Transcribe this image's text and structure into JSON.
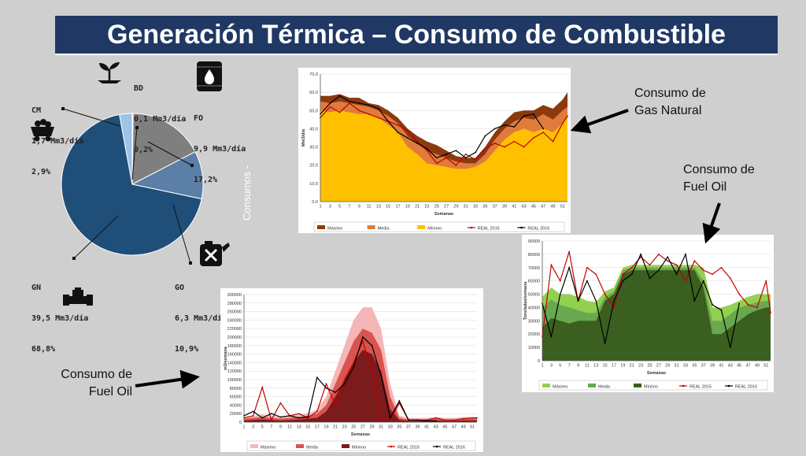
{
  "title": "Generación Térmica – Consumo de Combustible",
  "side_watermark": "Consumos -",
  "annotations": {
    "gas_natural": [
      "Consumo de",
      "Gas Natural"
    ],
    "fuel_oil_right": [
      "Consumo de",
      "Fuel Oil"
    ],
    "fuel_oil_left": [
      "Consumo de",
      "Fuel Oil"
    ]
  },
  "colors": {
    "title_bg": "#1f3864",
    "gn": "#1f4e79",
    "fo": "#7f7f7f",
    "go": "#5b7fa6",
    "cm": "#9dc3e6",
    "bd": "#dfe8f2",
    "gas_max": "#8b3a0e",
    "gas_media": "#e07b3c",
    "gas_min": "#ffc000",
    "fo_max": "#f4b6b6",
    "fo_media": "#d9534f",
    "fo_min": "#7b1b1b",
    "go_max": "#92d050",
    "go_media": "#6aa84f",
    "go_min": "#3a5f1f",
    "real2015": "#c00000",
    "real2016": "#000000"
  },
  "pie_labels": {
    "bd": [
      "BD",
      "0,1 Mm3/día",
      "0,2%"
    ],
    "fo": [
      "FO",
      "9,9 Mm3/día",
      "17,2%"
    ],
    "cm": [
      "CM",
      "1,7 Mm3/día",
      "2,9%"
    ],
    "go": [
      "GO",
      "6,3 Mm3/día",
      "10,9%"
    ],
    "gn": [
      "GN",
      "39,5 Mm3/día",
      "68,8%"
    ]
  },
  "icons": {
    "bd": "plant-icon",
    "fo": "oil-drop-icon",
    "cm": "coal-cart-icon",
    "go": "fuel-can-icon",
    "gn": "gas-pipe-icon"
  },
  "chart_data": [
    {
      "type": "pie",
      "labels": [
        "BD",
        "FO",
        "GO",
        "GN",
        "CM"
      ],
      "values": [
        0.2,
        17.2,
        10.9,
        68.8,
        2.9
      ]
    },
    {
      "type": "area",
      "xlabel": "Semanas",
      "ylabel": "Mm3/día",
      "ylim": [
        0,
        70
      ],
      "yticks": [
        "0.0",
        "10.0",
        "20.0",
        "30.0",
        "40.0",
        "50.0",
        "60.0",
        "70.0"
      ],
      "xticks": [
        "1",
        "3",
        "5",
        "7",
        "9",
        "11",
        "13",
        "15",
        "17",
        "19",
        "21",
        "23",
        "25",
        "27",
        "29",
        "31",
        "33",
        "35",
        "37",
        "39",
        "41",
        "43",
        "45",
        "47",
        "49",
        "51"
      ],
      "x": [
        1,
        3,
        5,
        7,
        9,
        11,
        13,
        15,
        17,
        19,
        21,
        23,
        25,
        27,
        29,
        31,
        33,
        35,
        37,
        39,
        41,
        43,
        45,
        47,
        49,
        51,
        52
      ],
      "series": [
        {
          "name": "Máximo",
          "values": [
            58,
            58,
            59,
            57,
            57,
            54,
            53,
            50,
            46,
            40,
            36,
            33,
            31,
            28,
            25,
            24,
            24,
            30,
            38,
            44,
            49,
            50,
            50,
            53,
            51,
            56,
            60
          ]
        },
        {
          "name": "Media",
          "values": [
            55,
            54,
            55,
            54,
            53,
            52,
            50,
            47,
            43,
            36,
            32,
            28,
            26,
            24,
            22,
            21,
            21,
            26,
            34,
            40,
            44,
            46,
            45,
            48,
            45,
            50,
            52
          ]
        },
        {
          "name": "Mínimo",
          "values": [
            50,
            49,
            50,
            49,
            48,
            48,
            46,
            42,
            38,
            30,
            26,
            21,
            20,
            19,
            18,
            18,
            19,
            22,
            28,
            34,
            38,
            40,
            38,
            40,
            38,
            43,
            46
          ]
        },
        {
          "name": "REAL 2015",
          "values": [
            46,
            52,
            49,
            54,
            50,
            48,
            46,
            44,
            42,
            39,
            33,
            28,
            21,
            24,
            20,
            26,
            23,
            29,
            32,
            30,
            33,
            30,
            35,
            38,
            33,
            43,
            47
          ]
        },
        {
          "name": "REAL 2016",
          "values": [
            48,
            54,
            58,
            55,
            54,
            53,
            51,
            44,
            38,
            35,
            32,
            29,
            24,
            26,
            28,
            24,
            27,
            36,
            40,
            42,
            41,
            47,
            48,
            40,
            null,
            null,
            null
          ]
        }
      ]
    },
    {
      "type": "area",
      "xlabel": "Semanas",
      "ylabel": "Toneladas/semana",
      "ylim": [
        0,
        90000
      ],
      "yticks": [
        "0",
        "10000",
        "20000",
        "30000",
        "40000",
        "50000",
        "60000",
        "70000",
        "80000",
        "90000"
      ],
      "xticks": [
        "1",
        "3",
        "5",
        "7",
        "9",
        "11",
        "13",
        "15",
        "17",
        "19",
        "21",
        "23",
        "25",
        "27",
        "29",
        "31",
        "33",
        "35",
        "37",
        "39",
        "41",
        "43",
        "45",
        "47",
        "49",
        "51"
      ],
      "x": [
        1,
        3,
        5,
        7,
        9,
        11,
        13,
        15,
        17,
        19,
        21,
        23,
        25,
        27,
        29,
        31,
        33,
        35,
        37,
        39,
        41,
        43,
        45,
        47,
        49,
        51,
        52
      ],
      "series": [
        {
          "name": "Máximo",
          "values": [
            48000,
            55000,
            50000,
            50000,
            48000,
            45000,
            44000,
            52000,
            55000,
            70000,
            72000,
            72000,
            72000,
            72000,
            72000,
            72000,
            72000,
            72000,
            70000,
            40000,
            40000,
            42000,
            45000,
            48000,
            50000,
            50000,
            50000
          ]
        },
        {
          "name": "Media",
          "values": [
            40000,
            46000,
            42000,
            40000,
            38000,
            36000,
            36000,
            48000,
            52000,
            68000,
            70000,
            70000,
            70000,
            70000,
            70000,
            70000,
            70000,
            70000,
            60000,
            30000,
            30000,
            35000,
            40000,
            42000,
            44000,
            45000,
            45000
          ]
        },
        {
          "name": "Mínimo",
          "values": [
            25000,
            32000,
            30000,
            28000,
            30000,
            30000,
            30000,
            45000,
            50000,
            65000,
            68000,
            68000,
            68000,
            68000,
            68000,
            68000,
            68000,
            68000,
            55000,
            20000,
            20000,
            25000,
            30000,
            35000,
            38000,
            40000,
            40000
          ]
        },
        {
          "name": "REAL 2015",
          "values": [
            18000,
            72000,
            60000,
            82000,
            45000,
            70000,
            65000,
            50000,
            40000,
            65000,
            70000,
            78000,
            72000,
            80000,
            75000,
            72000,
            60000,
            75000,
            68000,
            65000,
            70000,
            62000,
            50000,
            42000,
            40000,
            60000,
            36000
          ]
        },
        {
          "name": "REAL 2016",
          "values": [
            43000,
            18000,
            50000,
            70000,
            45000,
            60000,
            45000,
            13000,
            45000,
            60000,
            65000,
            80000,
            62000,
            68000,
            78000,
            65000,
            80000,
            45000,
            60000,
            42000,
            38000,
            10000,
            43000,
            null,
            null,
            null,
            null
          ]
        }
      ]
    },
    {
      "type": "area",
      "xlabel": "Semanas",
      "ylabel": "m3/semana",
      "ylim": [
        0,
        300000
      ],
      "yticks": [
        "0",
        "20000",
        "40000",
        "60000",
        "80000",
        "100000",
        "120000",
        "140000",
        "160000",
        "180000",
        "200000",
        "220000",
        "240000",
        "260000",
        "280000",
        "300000"
      ],
      "xticks": [
        "1",
        "3",
        "5",
        "7",
        "9",
        "11",
        "13",
        "15",
        "17",
        "19",
        "21",
        "23",
        "25",
        "27",
        "29",
        "31",
        "33",
        "35",
        "37",
        "39",
        "41",
        "43",
        "45",
        "47",
        "49",
        "51"
      ],
      "x": [
        1,
        3,
        5,
        7,
        9,
        11,
        13,
        15,
        17,
        19,
        21,
        23,
        25,
        27,
        29,
        31,
        33,
        35,
        37,
        39,
        41,
        43,
        45,
        47,
        49,
        51,
        52
      ],
      "series": [
        {
          "name": "Máximo",
          "values": [
            12000,
            15000,
            18000,
            15000,
            12000,
            15000,
            18000,
            20000,
            30000,
            60000,
            120000,
            180000,
            240000,
            270000,
            270000,
            220000,
            90000,
            15000,
            10000,
            10000,
            10000,
            12000,
            10000,
            10000,
            12000,
            12000,
            12000
          ]
        },
        {
          "name": "Media",
          "values": [
            8000,
            10000,
            12000,
            10000,
            8000,
            10000,
            12000,
            15000,
            20000,
            40000,
            90000,
            140000,
            190000,
            220000,
            210000,
            170000,
            60000,
            10000,
            6000,
            6000,
            6000,
            8000,
            6000,
            6000,
            8000,
            8000,
            8000
          ]
        },
        {
          "name": "Mínimo",
          "values": [
            4000,
            5000,
            6000,
            5000,
            4000,
            5000,
            6000,
            8000,
            10000,
            25000,
            60000,
            100000,
            140000,
            170000,
            160000,
            120000,
            30000,
            5000,
            3000,
            3000,
            3000,
            4000,
            3000,
            3000,
            4000,
            4000,
            4000
          ]
        },
        {
          "name": "REAL 2015",
          "values": [
            10000,
            15000,
            82000,
            5000,
            45000,
            15000,
            20000,
            10000,
            25000,
            90000,
            40000,
            100000,
            140000,
            190000,
            120000,
            10000,
            5000,
            45000,
            5000,
            5000,
            5000,
            10000,
            5000,
            5000,
            8000,
            10000,
            10000
          ]
        },
        {
          "name": "REAL 2016",
          "values": [
            15000,
            25000,
            10000,
            20000,
            12000,
            15000,
            10000,
            12000,
            105000,
            80000,
            70000,
            90000,
            130000,
            200000,
            180000,
            110000,
            10000,
            50000,
            5000,
            5000,
            3000,
            3000,
            null,
            null,
            null,
            null,
            null
          ]
        }
      ]
    }
  ]
}
